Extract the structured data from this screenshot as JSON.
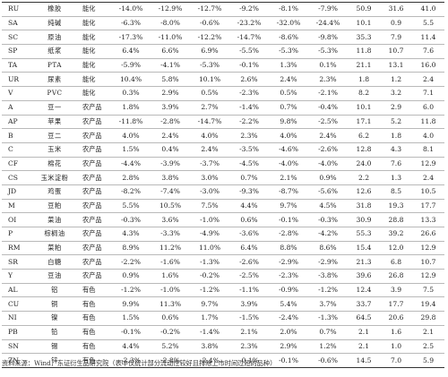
{
  "rows": [
    {
      "code": "RU",
      "name": "橡胶",
      "sector": "能化",
      "values": [
        "-14.0%",
        "-12.9%",
        "-12.7%",
        "-9.2%",
        "-8.1%",
        "-7.9%",
        "50.9",
        "31.6",
        "41.0"
      ]
    },
    {
      "code": "SA",
      "name": "纯碱",
      "sector": "能化",
      "values": [
        "-6.3%",
        "-8.0%",
        "-0.6%",
        "-23.2%",
        "-32.0%",
        "-24.4%",
        "10.1",
        "0.9",
        "5.5"
      ]
    },
    {
      "code": "SC",
      "name": "原油",
      "sector": "能化",
      "values": [
        "-17.3%",
        "-11.0%",
        "-12.2%",
        "-14.7%",
        "-8.6%",
        "-9.8%",
        "35.3",
        "7.9",
        "11.4"
      ]
    },
    {
      "code": "SP",
      "name": "纸浆",
      "sector": "能化",
      "values": [
        "6.4%",
        "6.6%",
        "6.9%",
        "-5.5%",
        "-5.3%",
        "-5.3%",
        "11.8",
        "10.7",
        "7.6"
      ]
    },
    {
      "code": "TA",
      "name": "PTA",
      "sector": "能化",
      "values": [
        "-5.9%",
        "-4.1%",
        "-5.3%",
        "-0.1%",
        "1.3%",
        "0.1%",
        "21.1",
        "13.1",
        "16.0"
      ]
    },
    {
      "code": "UR",
      "name": "尿素",
      "sector": "能化",
      "values": [
        "10.4%",
        "5.8%",
        "10.1%",
        "2.6%",
        "2.4%",
        "2.3%",
        "1.8",
        "1.2",
        "2.4"
      ]
    },
    {
      "code": "V",
      "name": "PVC",
      "sector": "能化",
      "values": [
        "0.3%",
        "2.9%",
        "0.5%",
        "-2.3%",
        "0.5%",
        "-2.1%",
        "8.2",
        "3.2",
        "7.1"
      ]
    },
    {
      "code": "A",
      "name": "豆一",
      "sector": "农产品",
      "values": [
        "1.8%",
        "3.9%",
        "2.7%",
        "-1.4%",
        "0.7%",
        "-0.4%",
        "10.1",
        "2.9",
        "6.0"
      ]
    },
    {
      "code": "AP",
      "name": "苹果",
      "sector": "农产品",
      "values": [
        "-11.8%",
        "-2.8%",
        "-14.7%",
        "-2.2%",
        "9.8%",
        "-2.5%",
        "17.1",
        "5.2",
        "11.8"
      ]
    },
    {
      "code": "B",
      "name": "豆二",
      "sector": "农产品",
      "values": [
        "4.0%",
        "2.4%",
        "4.0%",
        "2.3%",
        "4.0%",
        "2.4%",
        "6.2",
        "1.8",
        "4.0"
      ]
    },
    {
      "code": "C",
      "name": "玉米",
      "sector": "农产品",
      "values": [
        "1.5%",
        "0.4%",
        "2.4%",
        "-3.5%",
        "-4.6%",
        "-2.6%",
        "12.8",
        "4.3",
        "8.1"
      ]
    },
    {
      "code": "CF",
      "name": "棉花",
      "sector": "农产品",
      "values": [
        "-4.4%",
        "-3.9%",
        "-3.7%",
        "-4.5%",
        "-4.0%",
        "-4.0%",
        "24.0",
        "7.6",
        "12.9"
      ]
    },
    {
      "code": "CS",
      "name": "玉米淀粉",
      "sector": "农产品",
      "values": [
        "2.8%",
        "3.8%",
        "3.0%",
        "0.7%",
        "2.1%",
        "0.9%",
        "2.2",
        "1.3",
        "2.4"
      ]
    },
    {
      "code": "JD",
      "name": "鸡蛋",
      "sector": "农产品",
      "values": [
        "-8.2%",
        "-7.4%",
        "-3.0%",
        "-9.3%",
        "-8.7%",
        "-5.6%",
        "12.6",
        "8.5",
        "10.5"
      ]
    },
    {
      "code": "M",
      "name": "豆粕",
      "sector": "农产品",
      "values": [
        "5.5%",
        "10.5%",
        "7.5%",
        "4.4%",
        "9.7%",
        "4.5%",
        "31.8",
        "19.3",
        "17.7"
      ]
    },
    {
      "code": "OI",
      "name": "菜油",
      "sector": "农产品",
      "values": [
        "-0.3%",
        "3.6%",
        "-1.0%",
        "0.6%",
        "-0.1%",
        "-0.3%",
        "30.9",
        "28.8",
        "13.3"
      ]
    },
    {
      "code": "P",
      "name": "棕榈油",
      "sector": "农产品",
      "values": [
        "4.3%",
        "-3.3%",
        "-4.9%",
        "-3.6%",
        "-2.8%",
        "-4.2%",
        "55.3",
        "39.2",
        "26.6"
      ]
    },
    {
      "code": "RM",
      "name": "菜粕",
      "sector": "农产品",
      "values": [
        "8.9%",
        "11.2%",
        "11.0%",
        "6.4%",
        "8.8%",
        "8.6%",
        "15.4",
        "12.0",
        "12.9"
      ]
    },
    {
      "code": "SR",
      "name": "白糖",
      "sector": "农产品",
      "values": [
        "-2.2%",
        "-1.6%",
        "-1.3%",
        "-2.6%",
        "-2.9%",
        "-2.9%",
        "21.3",
        "6.8",
        "10.7"
      ]
    },
    {
      "code": "Y",
      "name": "豆油",
      "sector": "农产品",
      "values": [
        "0.9%",
        "1.6%",
        "-0.2%",
        "-2.5%",
        "-2.3%",
        "-3.8%",
        "39.6",
        "26.8",
        "12.9"
      ]
    },
    {
      "code": "AL",
      "name": "铝",
      "sector": "有色",
      "values": [
        "-1.2%",
        "-1.0%",
        "-1.2%",
        "-1.1%",
        "-0.9%",
        "-1.2%",
        "12.4",
        "3.9",
        "7.5"
      ]
    },
    {
      "code": "CU",
      "name": "铜",
      "sector": "有色",
      "values": [
        "9.9%",
        "11.3%",
        "9.7%",
        "3.9%",
        "5.4%",
        "3.7%",
        "33.7",
        "17.7",
        "19.4"
      ]
    },
    {
      "code": "NI",
      "name": "镍",
      "sector": "有色",
      "values": [
        "1.5%",
        "0.6%",
        "1.7%",
        "-1.5%",
        "-2.4%",
        "-1.3%",
        "64.5",
        "20.6",
        "29.8"
      ]
    },
    {
      "code": "PB",
      "name": "铅",
      "sector": "有色",
      "values": [
        "-0.1%",
        "-0.2%",
        "-1.4%",
        "2.1%",
        "2.0%",
        "0.7%",
        "2.1",
        "1.6",
        "2.1"
      ]
    },
    {
      "code": "SN",
      "name": "锡",
      "sector": "有色",
      "values": [
        "4.4%",
        "5.2%",
        "3.8%",
        "2.3%",
        "2.9%",
        "1.2%",
        "2.1",
        "1.0",
        "2.5"
      ]
    },
    {
      "code": "ZN",
      "name": "锌",
      "sector": "有色",
      "values": [
        "-2.3%",
        "-2.8%",
        "-2.4%",
        "-0.1%",
        "-0.1%",
        "-0.6%",
        "14.5",
        "7.0",
        "5.9"
      ]
    }
  ],
  "source_note": "资料来源：Wind，东证衍生品研究院（表中仅统计部分流动性较好且排除上市时间过短的品种）"
}
